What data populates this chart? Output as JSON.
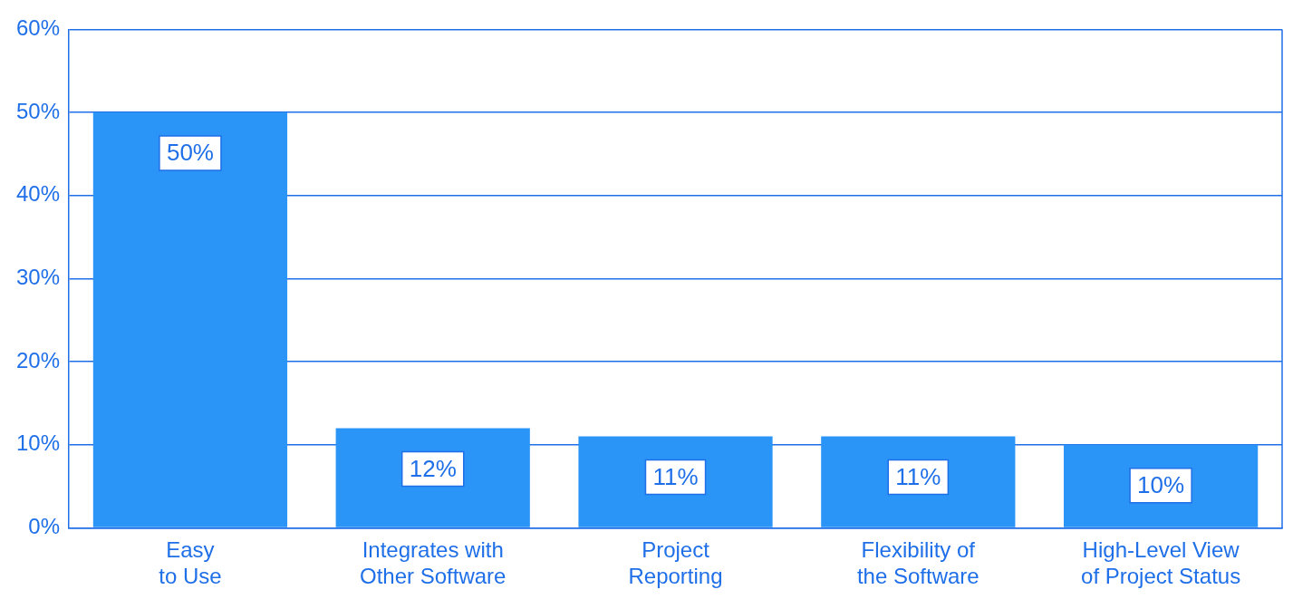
{
  "chart_data": {
    "type": "bar",
    "categories": [
      "Easy to Use",
      "Integrates with Other Software",
      "Project Reporting",
      "Flexibility of the Software",
      "High-Level View of Project Status"
    ],
    "values": [
      50,
      12,
      11,
      11,
      10
    ],
    "color": "#2a95f7",
    "ylim": [
      0,
      60
    ],
    "yticks": [
      {
        "value": 0,
        "label": "0%"
      },
      {
        "value": 10,
        "label": "10%"
      },
      {
        "value": 20,
        "label": "20%"
      },
      {
        "value": 30,
        "label": "30%"
      },
      {
        "value": 40,
        "label": "40%"
      },
      {
        "value": 50,
        "label": "50%"
      },
      {
        "value": 60,
        "label": "60%"
      }
    ],
    "value_labels": [
      "50%",
      "12%",
      "11%",
      "11%",
      "10%"
    ],
    "grid": "y",
    "legend": false
  }
}
